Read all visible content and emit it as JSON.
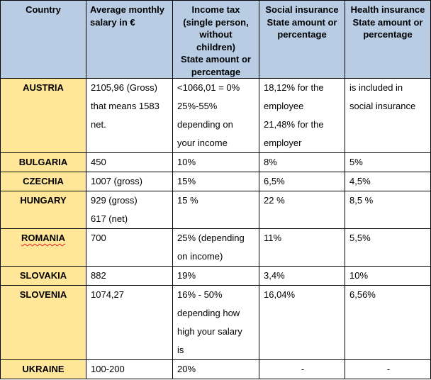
{
  "table": {
    "headers": [
      {
        "lines": [
          "Country"
        ]
      },
      {
        "lines": [
          "Average monthly",
          "salary in €"
        ]
      },
      {
        "lines": [
          "Income tax",
          "(single person,",
          "without",
          "children)",
          "State amount or",
          "percentage"
        ]
      },
      {
        "lines": [
          "Social insurance",
          "State amount or",
          "percentage"
        ]
      },
      {
        "lines": [
          "Health insurance",
          "State amount or",
          "percentage"
        ]
      }
    ],
    "rows": [
      {
        "country": "AUSTRIA",
        "salary": [
          "2105,96 (Gross)",
          "that means 1583",
          "net."
        ],
        "income_tax": [
          "<1066,01 = 0%",
          "25%-55%",
          "depending on",
          "your income"
        ],
        "social": [
          "18,12% for the",
          "employee",
          "21,48% for the",
          "employer"
        ],
        "health": [
          "is included in",
          "social insurance"
        ]
      },
      {
        "country": "BULGARIA",
        "salary": [
          "450"
        ],
        "income_tax": [
          "10%"
        ],
        "social": [
          "8%"
        ],
        "health": [
          "5%"
        ]
      },
      {
        "country": "CZECHIA",
        "salary": [
          "1007 (gross)"
        ],
        "income_tax": [
          "15%"
        ],
        "social": [
          "6,5%"
        ],
        "health": [
          "4,5%"
        ]
      },
      {
        "country": "HUNGARY",
        "salary": [
          "929 (gross)",
          "617 (net)"
        ],
        "income_tax": [
          "15 %"
        ],
        "social": [
          "22 %"
        ],
        "health": [
          "8,5 %"
        ]
      },
      {
        "country": "ROMANIA",
        "salary": [
          "700"
        ],
        "income_tax": [
          "25% (depending",
          "on income)"
        ],
        "social": [
          "11%"
        ],
        "health": [
          "5,5%"
        ]
      },
      {
        "country": "SLOVAKIA",
        "salary": [
          "882"
        ],
        "income_tax": [
          "19%"
        ],
        "social": [
          "3,4%"
        ],
        "health": [
          "10%"
        ]
      },
      {
        "country": "SLOVENIA",
        "salary": [
          "1074,27"
        ],
        "income_tax": [
          "16% - 50%",
          "depending how",
          "high your salary",
          "is"
        ],
        "social": [
          "16,04%"
        ],
        "health": [
          "6,56%"
        ]
      },
      {
        "country": "UKRAINE",
        "salary": [
          "100-200"
        ],
        "income_tax": [
          "20%"
        ],
        "social": [
          "-"
        ],
        "health": [
          "-"
        ]
      }
    ]
  },
  "colors": {
    "header_bg": "#b8cce4",
    "country_bg": "#ffe699",
    "border": "#000000",
    "spellcheck_underline": "#e02020"
  }
}
